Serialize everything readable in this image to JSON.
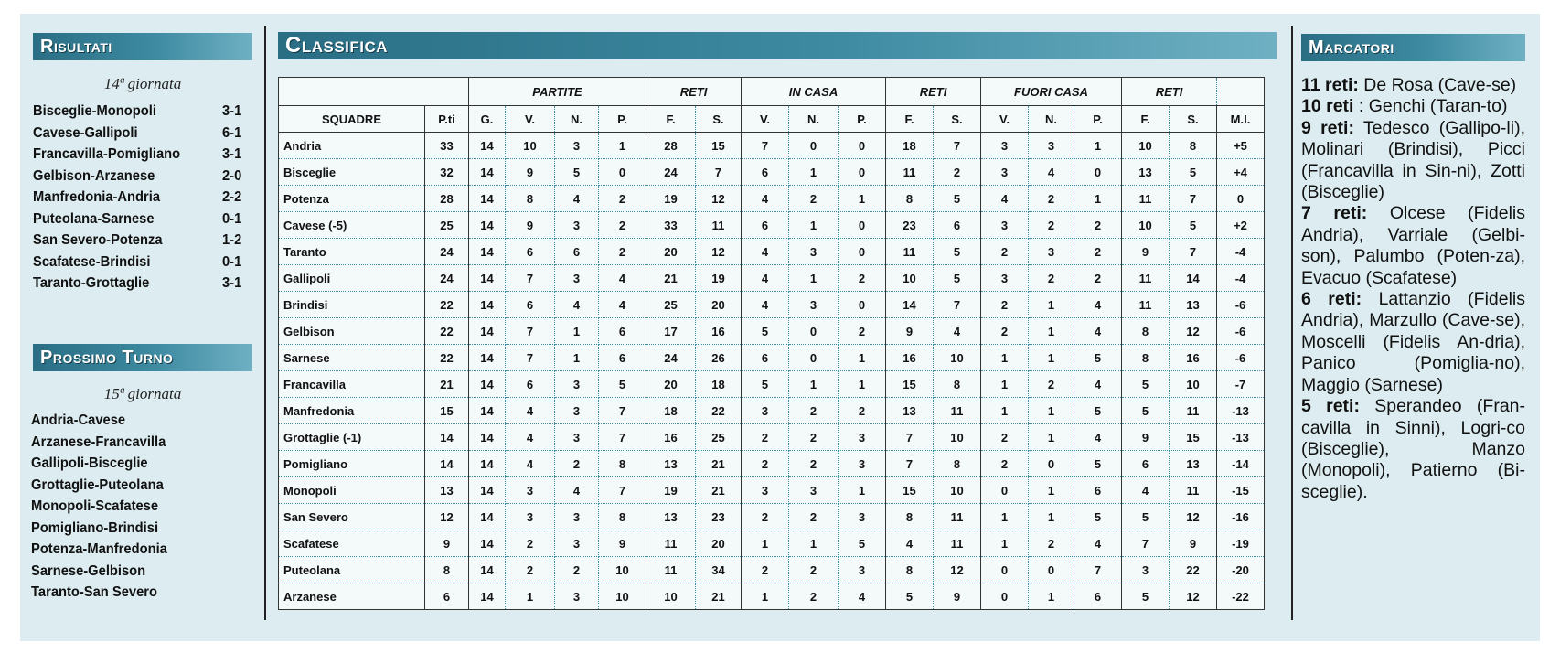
{
  "risultati": {
    "header": "Risultati",
    "giornata": "14ª giornata",
    "matches": [
      {
        "match": "Bisceglie-Monopoli",
        "score": "3-1"
      },
      {
        "match": "Cavese-Gallipoli",
        "score": "6-1"
      },
      {
        "match": "Francavilla-Pomigliano",
        "score": "3-1"
      },
      {
        "match": "Gelbison-Arzanese",
        "score": "2-0"
      },
      {
        "match": "Manfredonia-Andria",
        "score": "2-2"
      },
      {
        "match": "Puteolana-Sarnese",
        "score": "0-1"
      },
      {
        "match": "San Severo-Potenza",
        "score": "1-2"
      },
      {
        "match": "Scafatese-Brindisi",
        "score": "0-1"
      },
      {
        "match": "Taranto-Grottaglie",
        "score": "3-1"
      }
    ]
  },
  "prossimo_turno": {
    "header": "Prossimo Turno",
    "giornata": "15ª giornata",
    "matches": [
      "Andria-Cavese",
      "Arzanese-Francavilla",
      "Gallipoli-Bisceglie",
      "Grottaglie-Puteolana",
      "Monopoli-Scafatese",
      "Pomigliano-Brindisi",
      "Potenza-Manfredonia",
      "Sarnese-Gelbison",
      "Taranto-San Severo"
    ]
  },
  "classifica": {
    "header": "Classifica",
    "groups": [
      "PARTITE",
      "RETI",
      "IN CASA",
      "RETI",
      "FUORI CASA",
      "RETI"
    ],
    "columns": [
      "SQUADRE",
      "P.ti",
      "G.",
      "V.",
      "N.",
      "P.",
      "F.",
      "S.",
      "V.",
      "N.",
      "P.",
      "F.",
      "S.",
      "V.",
      "N.",
      "P.",
      "F.",
      "S.",
      "M.I."
    ],
    "rows": [
      [
        "Andria",
        "33",
        "14",
        "10",
        "3",
        "1",
        "28",
        "15",
        "7",
        "0",
        "0",
        "18",
        "7",
        "3",
        "3",
        "1",
        "10",
        "8",
        "+5"
      ],
      [
        "Bisceglie",
        "32",
        "14",
        "9",
        "5",
        "0",
        "24",
        "7",
        "6",
        "1",
        "0",
        "11",
        "2",
        "3",
        "4",
        "0",
        "13",
        "5",
        "+4"
      ],
      [
        "Potenza",
        "28",
        "14",
        "8",
        "4",
        "2",
        "19",
        "12",
        "4",
        "2",
        "1",
        "8",
        "5",
        "4",
        "2",
        "1",
        "11",
        "7",
        "0"
      ],
      [
        "Cavese (-5)",
        "25",
        "14",
        "9",
        "3",
        "2",
        "33",
        "11",
        "6",
        "1",
        "0",
        "23",
        "6",
        "3",
        "2",
        "2",
        "10",
        "5",
        "+2"
      ],
      [
        "Taranto",
        "24",
        "14",
        "6",
        "6",
        "2",
        "20",
        "12",
        "4",
        "3",
        "0",
        "11",
        "5",
        "2",
        "3",
        "2",
        "9",
        "7",
        "-4"
      ],
      [
        "Gallipoli",
        "24",
        "14",
        "7",
        "3",
        "4",
        "21",
        "19",
        "4",
        "1",
        "2",
        "10",
        "5",
        "3",
        "2",
        "2",
        "11",
        "14",
        "-4"
      ],
      [
        "Brindisi",
        "22",
        "14",
        "6",
        "4",
        "4",
        "25",
        "20",
        "4",
        "3",
        "0",
        "14",
        "7",
        "2",
        "1",
        "4",
        "11",
        "13",
        "-6"
      ],
      [
        "Gelbison",
        "22",
        "14",
        "7",
        "1",
        "6",
        "17",
        "16",
        "5",
        "0",
        "2",
        "9",
        "4",
        "2",
        "1",
        "4",
        "8",
        "12",
        "-6"
      ],
      [
        "Sarnese",
        "22",
        "14",
        "7",
        "1",
        "6",
        "24",
        "26",
        "6",
        "0",
        "1",
        "16",
        "10",
        "1",
        "1",
        "5",
        "8",
        "16",
        "-6"
      ],
      [
        "Francavilla",
        "21",
        "14",
        "6",
        "3",
        "5",
        "20",
        "18",
        "5",
        "1",
        "1",
        "15",
        "8",
        "1",
        "2",
        "4",
        "5",
        "10",
        "-7"
      ],
      [
        "Manfredonia",
        "15",
        "14",
        "4",
        "3",
        "7",
        "18",
        "22",
        "3",
        "2",
        "2",
        "13",
        "11",
        "1",
        "1",
        "5",
        "5",
        "11",
        "-13"
      ],
      [
        "Grottaglie (-1)",
        "14",
        "14",
        "4",
        "3",
        "7",
        "16",
        "25",
        "2",
        "2",
        "3",
        "7",
        "10",
        "2",
        "1",
        "4",
        "9",
        "15",
        "-13"
      ],
      [
        "Pomigliano",
        "14",
        "14",
        "4",
        "2",
        "8",
        "13",
        "21",
        "2",
        "2",
        "3",
        "7",
        "8",
        "2",
        "0",
        "5",
        "6",
        "13",
        "-14"
      ],
      [
        "Monopoli",
        "13",
        "14",
        "3",
        "4",
        "7",
        "19",
        "21",
        "3",
        "3",
        "1",
        "15",
        "10",
        "0",
        "1",
        "6",
        "4",
        "11",
        "-15"
      ],
      [
        "San Severo",
        "12",
        "14",
        "3",
        "3",
        "8",
        "13",
        "23",
        "2",
        "2",
        "3",
        "8",
        "11",
        "1",
        "1",
        "5",
        "5",
        "12",
        "-16"
      ],
      [
        "Scafatese",
        "9",
        "14",
        "2",
        "3",
        "9",
        "11",
        "20",
        "1",
        "1",
        "5",
        "4",
        "11",
        "1",
        "2",
        "4",
        "7",
        "9",
        "-19"
      ],
      [
        "Puteolana",
        "8",
        "14",
        "2",
        "2",
        "10",
        "11",
        "34",
        "2",
        "2",
        "3",
        "8",
        "12",
        "0",
        "0",
        "7",
        "3",
        "22",
        "-20"
      ],
      [
        "Arzanese",
        "6",
        "14",
        "1",
        "3",
        "10",
        "10",
        "21",
        "1",
        "2",
        "4",
        "5",
        "9",
        "0",
        "1",
        "6",
        "5",
        "12",
        "-22"
      ]
    ]
  },
  "marcatori": {
    "header": "Marcatori",
    "entries": [
      {
        "label": "11 reti:",
        "names": "De Rosa (Cave-se)"
      },
      {
        "label": "10 reti",
        "names": ": Genchi (Taran-to)"
      },
      {
        "label": "9 reti:",
        "names": "Tedesco (Gallipo-li), Molinari (Brindisi), Picci (Francavilla in Sin-ni), Zotti (Bisceglie)"
      },
      {
        "label": "7 reti:",
        "names": "Olcese (Fidelis Andria), Varriale (Gelbi-son), Palumbo (Poten-za), Evacuo (Scafatese)"
      },
      {
        "label": "6 reti:",
        "names": "Lattanzio (Fidelis Andria), Marzullo (Cave-se), Moscelli (Fidelis An-dria), Panico (Pomiglia-no), Maggio (Sarnese)"
      },
      {
        "label": "5 reti:",
        "names": "Sperandeo (Fran-cavilla in Sinni), Logri-co (Bisceglie), Manzo (Monopoli), Patierno (Bi-sceglie)."
      }
    ]
  }
}
